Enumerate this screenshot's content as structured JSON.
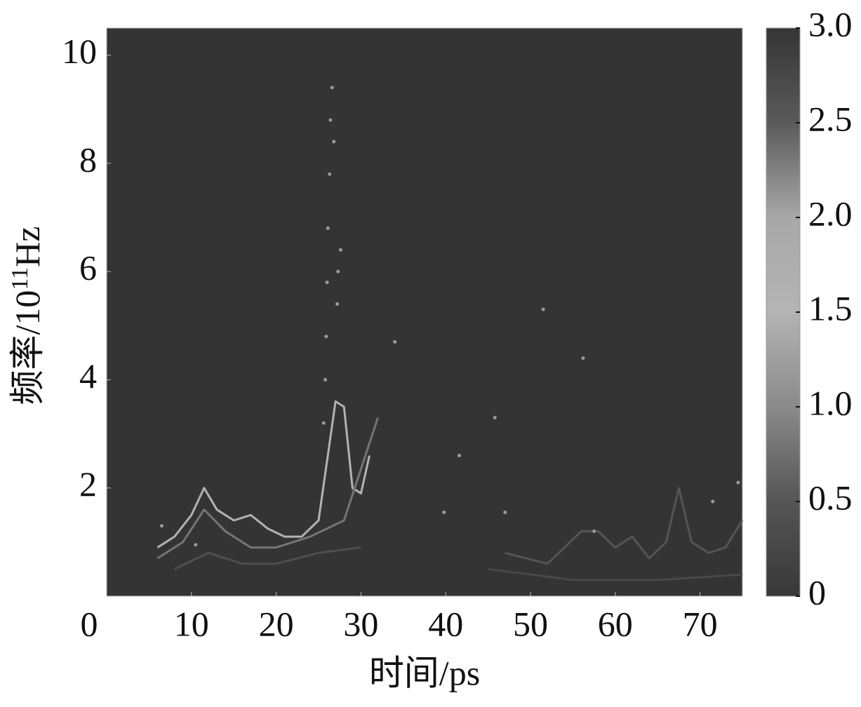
{
  "chart_data": {
    "type": "spectrogram",
    "xlabel": "时间/ps",
    "ylabel": [
      "频率/10",
      "11",
      "Hz"
    ],
    "xlim": [
      0,
      75
    ],
    "ylim": [
      0,
      10.5
    ],
    "xticks": [
      0,
      10,
      20,
      30,
      40,
      50,
      60,
      70
    ],
    "yticks": [
      2,
      4,
      6,
      8,
      10
    ],
    "background": "#343434",
    "colorbar": {
      "lim": [
        0,
        3
      ],
      "ticks": [
        0,
        0.5,
        {
          "value": 1,
          "label": "1.0"
        },
        1.5,
        {
          "value": 2,
          "label": "2.0"
        },
        2.5,
        {
          "value": 3,
          "label": "3.0"
        }
      ],
      "colormap": [
        "#383838",
        "#555555",
        "#8a8a8a",
        "#b4b4b4",
        "#a8a8a8",
        "#5a5a5a",
        "#353535"
      ]
    },
    "series": [
      {
        "level": 1.6,
        "x": [
          6,
          8,
          10,
          11.5,
          13,
          15,
          17,
          19,
          21,
          23,
          25,
          26,
          27,
          28,
          29,
          30,
          31
        ],
        "y": [
          0.9,
          1.1,
          1.5,
          2.0,
          1.6,
          1.4,
          1.5,
          1.25,
          1.1,
          1.1,
          1.4,
          2.5,
          3.6,
          3.5,
          2.0,
          1.9,
          2.6
        ]
      },
      {
        "level": 0.8,
        "x": [
          6,
          9,
          11.5,
          14,
          17,
          20,
          24,
          28,
          32
        ],
        "y": [
          0.7,
          1.0,
          1.6,
          1.2,
          0.9,
          0.9,
          1.1,
          1.4,
          3.3
        ]
      },
      {
        "level": 0.4,
        "x": [
          8,
          12,
          16,
          20,
          25,
          30
        ],
        "y": [
          0.5,
          0.8,
          0.6,
          0.6,
          0.8,
          0.9
        ]
      },
      {
        "level": 0.5,
        "x": [
          47,
          52,
          56,
          58,
          60,
          62,
          64,
          66,
          67.5,
          69,
          71,
          73,
          75
        ],
        "y": [
          0.8,
          0.6,
          1.2,
          1.2,
          0.9,
          1.1,
          0.7,
          1.0,
          2.0,
          1.0,
          0.8,
          0.9,
          1.4
        ]
      },
      {
        "level": 0.3,
        "x": [
          45,
          55,
          65,
          75
        ],
        "y": [
          0.5,
          0.3,
          0.3,
          0.4
        ]
      }
    ],
    "points": {
      "level": 1.2,
      "x": [
        25.6,
        25.8,
        25.9,
        26.0,
        26.1,
        26.3,
        26.4,
        26.6,
        26.8,
        27.3,
        27.6,
        27.2,
        34,
        39.8,
        41.6,
        45.8,
        47,
        51.5,
        56.2,
        57.5,
        71.5,
        74.5,
        10.5,
        6.5
      ],
      "y": [
        3.2,
        4.0,
        4.8,
        5.8,
        6.8,
        7.8,
        8.8,
        9.4,
        8.4,
        6.0,
        6.4,
        5.4,
        4.7,
        1.55,
        2.6,
        3.3,
        1.55,
        5.3,
        4.4,
        1.2,
        1.75,
        2.1,
        0.95,
        1.3
      ]
    }
  }
}
